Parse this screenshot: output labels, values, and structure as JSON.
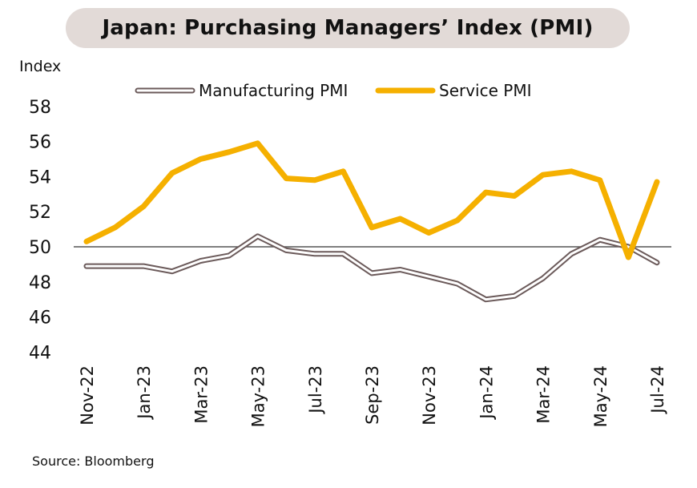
{
  "chart_data": {
    "type": "line",
    "title": "Japan: Purchasing Managers’ Index (PMI)",
    "ylabel": "Index",
    "xlabel": "",
    "ylim": [
      44,
      58
    ],
    "yticks": [
      44,
      46,
      48,
      50,
      52,
      54,
      56,
      58
    ],
    "reference_line": 50,
    "grid": false,
    "legend_position": "top",
    "x": [
      "Nov-22",
      "Dec-22",
      "Jan-23",
      "Feb-23",
      "Mar-23",
      "Apr-23",
      "May-23",
      "Jun-23",
      "Jul-23",
      "Aug-23",
      "Sep-23",
      "Oct-23",
      "Nov-23",
      "Dec-23",
      "Jan-24",
      "Feb-24",
      "Mar-24",
      "Apr-24",
      "May-24",
      "Jun-24",
      "Jul-24"
    ],
    "xtick_labels": [
      "Nov-22",
      "Jan-23",
      "Mar-23",
      "May-23",
      "Jul-23",
      "Sep-23",
      "Nov-23",
      "Jan-24",
      "Mar-24",
      "May-24",
      "Jul-24"
    ],
    "series": [
      {
        "name": "Manufacturing PMI",
        "color": "#6b5a5a",
        "style": "double-outline",
        "values": [
          48.9,
          48.9,
          48.9,
          48.6,
          49.2,
          49.5,
          50.6,
          49.8,
          49.6,
          49.6,
          48.5,
          48.7,
          48.3,
          47.9,
          47.0,
          47.2,
          48.2,
          49.6,
          50.4,
          50.0,
          49.1
        ]
      },
      {
        "name": "Service PMI",
        "color": "#f5b000",
        "style": "solid",
        "values": [
          50.3,
          51.1,
          52.3,
          54.2,
          55.0,
          55.4,
          55.9,
          53.9,
          53.8,
          54.3,
          51.1,
          51.6,
          50.8,
          51.5,
          53.1,
          52.9,
          54.1,
          54.3,
          53.8,
          49.4,
          53.7
        ]
      }
    ],
    "source": "Source: Bloomberg"
  }
}
